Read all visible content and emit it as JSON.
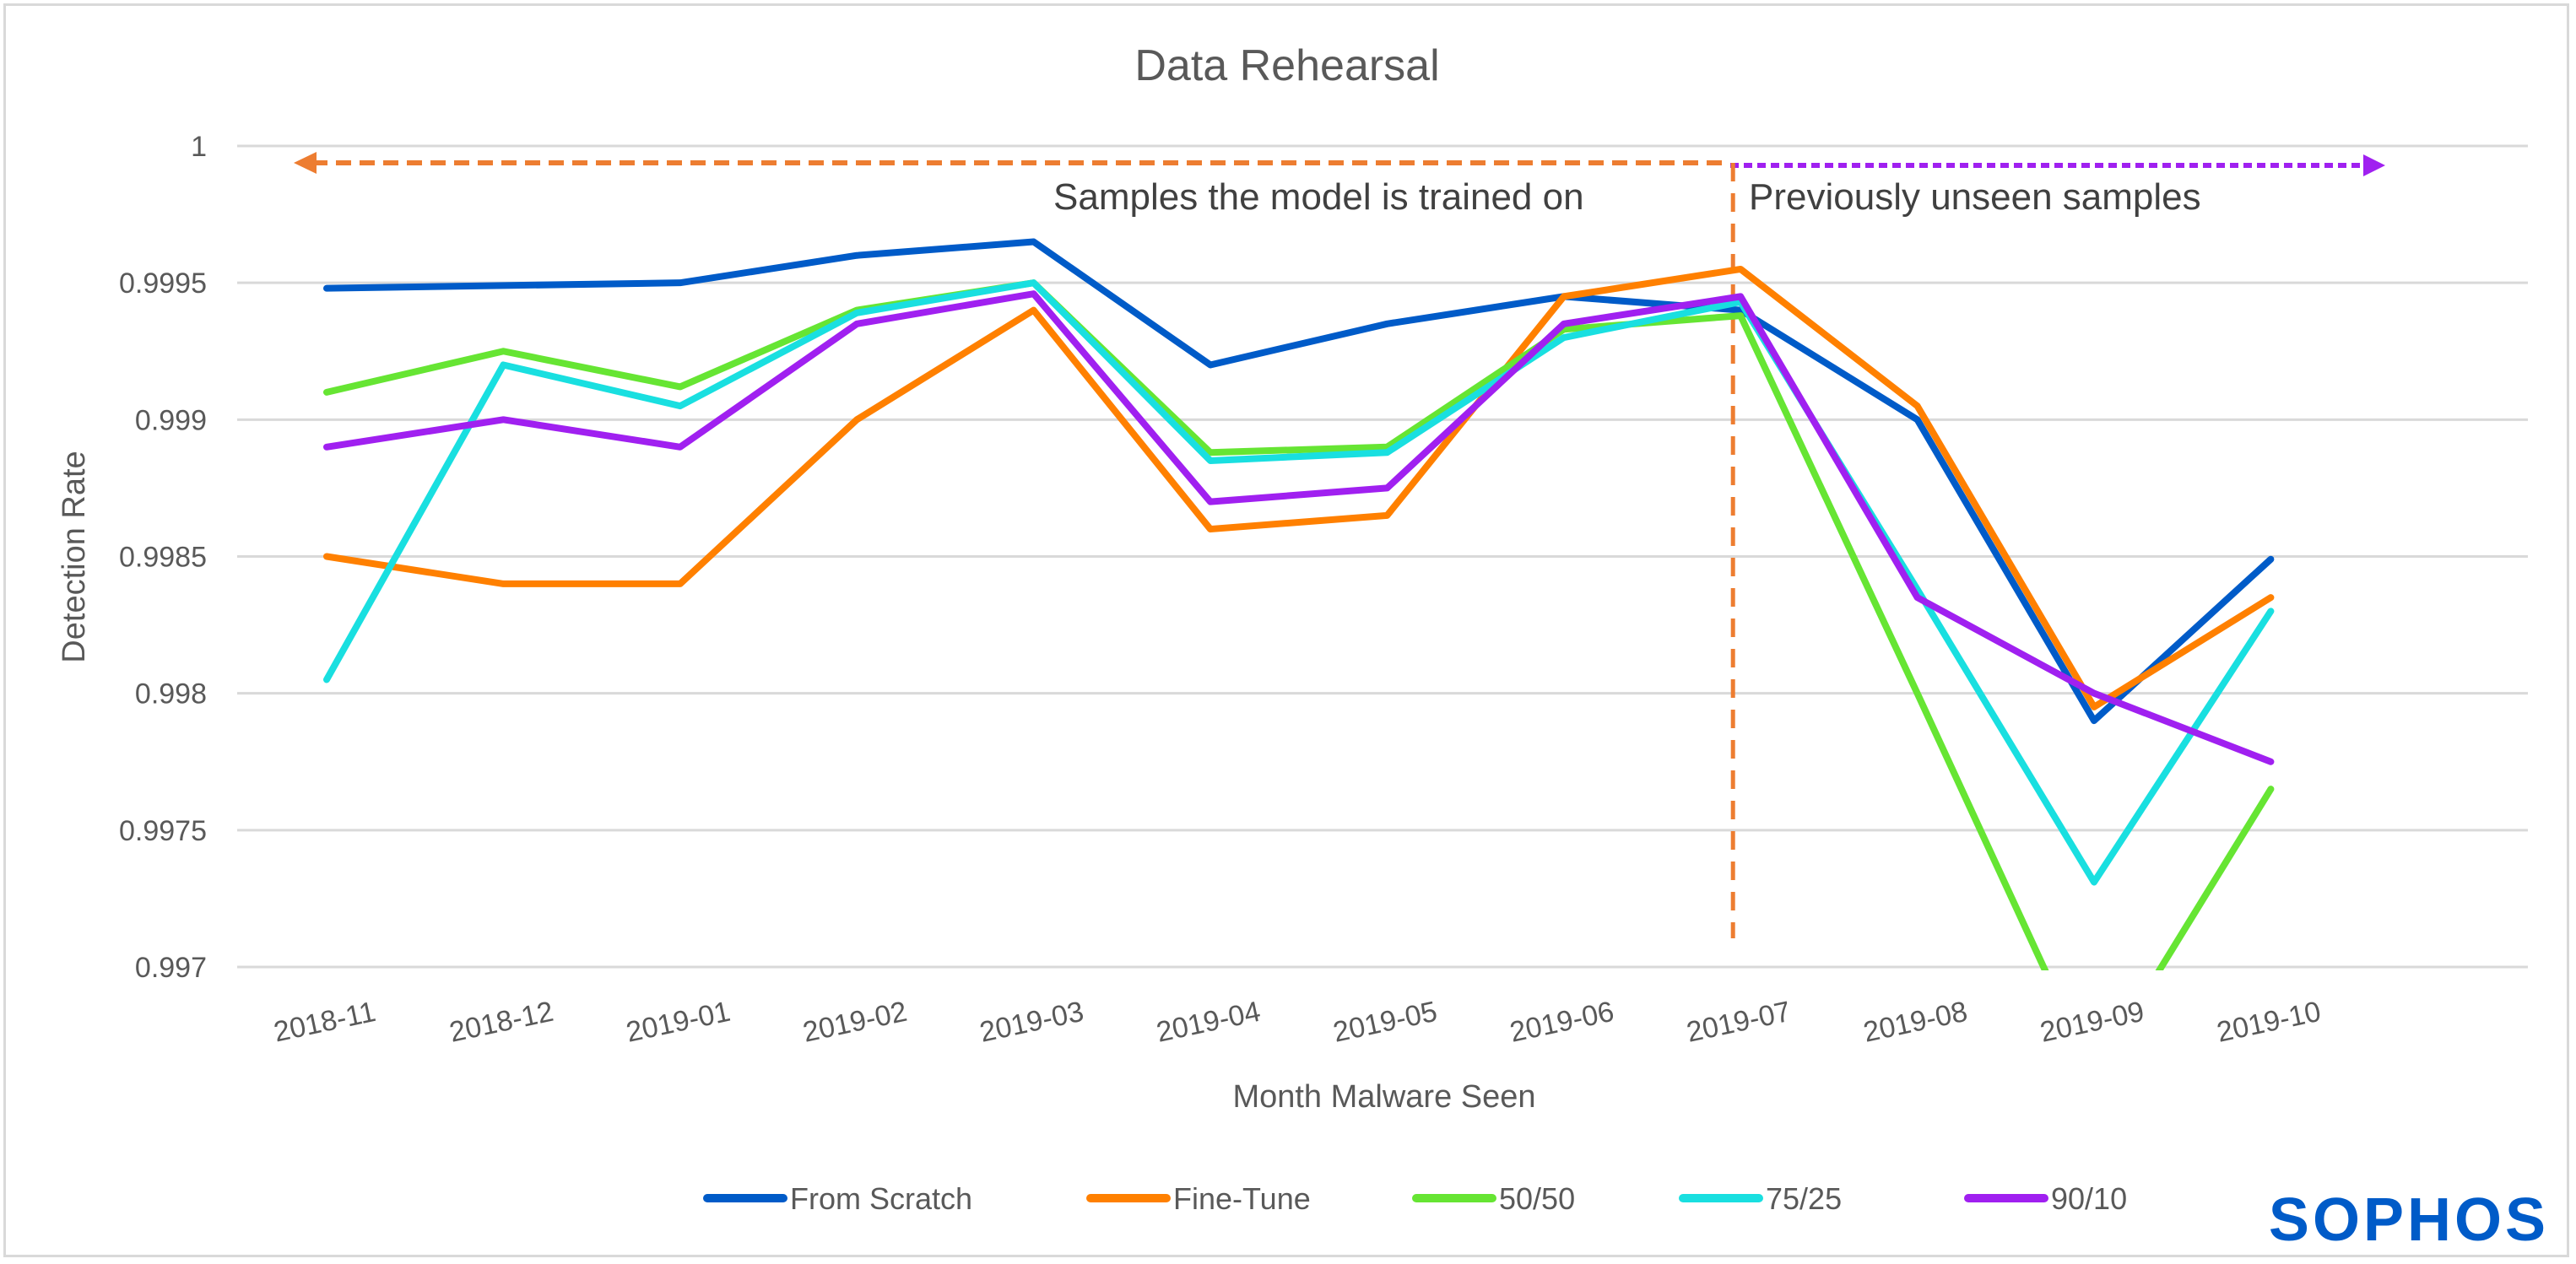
{
  "chart_data": {
    "type": "line",
    "title": "Data Rehearsal",
    "xlabel": "Month Malware Seen",
    "ylabel": "Detection Rate",
    "ylim": [
      0.997,
      1
    ],
    "yticks": [
      1,
      0.9995,
      0.999,
      0.9985,
      0.998,
      0.9975,
      0.997
    ],
    "ytick_labels": [
      "1",
      "0.9995",
      "0.999",
      "0.9985",
      "0.998",
      "0.9975",
      "0.997"
    ],
    "grid": true,
    "legend_position": "bottom",
    "categories": [
      "2018-11",
      "2018-12",
      "2019-01",
      "2019-02",
      "2019-03",
      "2019-04",
      "2019-05",
      "2019-06",
      "2019-07",
      "2019-08",
      "2019-09",
      "2019-10"
    ],
    "series": [
      {
        "name": "From Scratch",
        "color": "#005bc8",
        "values": [
          0.99948,
          0.99949,
          0.9995,
          0.9996,
          0.99965,
          0.9992,
          0.99935,
          0.99945,
          0.9994,
          0.999,
          0.9979,
          0.99849
        ]
      },
      {
        "name": "Fine-Tune",
        "color": "#ff8000",
        "values": [
          0.9985,
          0.9984,
          0.9984,
          0.999,
          0.9994,
          0.9986,
          0.99865,
          0.99945,
          0.99955,
          0.99905,
          0.99795,
          0.99835
        ]
      },
      {
        "name": "50/50",
        "color": "#66e533",
        "values": [
          0.9991,
          0.99925,
          0.99912,
          0.9994,
          0.9995,
          0.99888,
          0.9989,
          0.99933,
          0.99938,
          0.998,
          0.9966,
          0.99765
        ]
      },
      {
        "name": "75/25",
        "color": "#19dfe0",
        "values": [
          0.99805,
          0.9992,
          0.99905,
          0.99939,
          0.9995,
          0.99885,
          0.99888,
          0.9993,
          0.99943,
          0.99838,
          0.99731,
          0.9983
        ]
      },
      {
        "name": "90/10",
        "color": "#a020f0",
        "values": [
          0.9989,
          0.999,
          0.9989,
          0.99935,
          0.99946,
          0.9987,
          0.99875,
          0.99935,
          0.99945,
          0.99835,
          0.998,
          0.99775
        ]
      }
    ],
    "annotations": {
      "divider_after_category": "2019-07",
      "left_arrow_label": "Samples the model is trained on",
      "left_arrow_color": "#ed7d31",
      "right_arrow_label": "Previously unseen samples",
      "right_arrow_color": "#a020f0"
    }
  },
  "branding": {
    "logo_text": "SOPHOS",
    "logo_color": "#005bc8"
  }
}
